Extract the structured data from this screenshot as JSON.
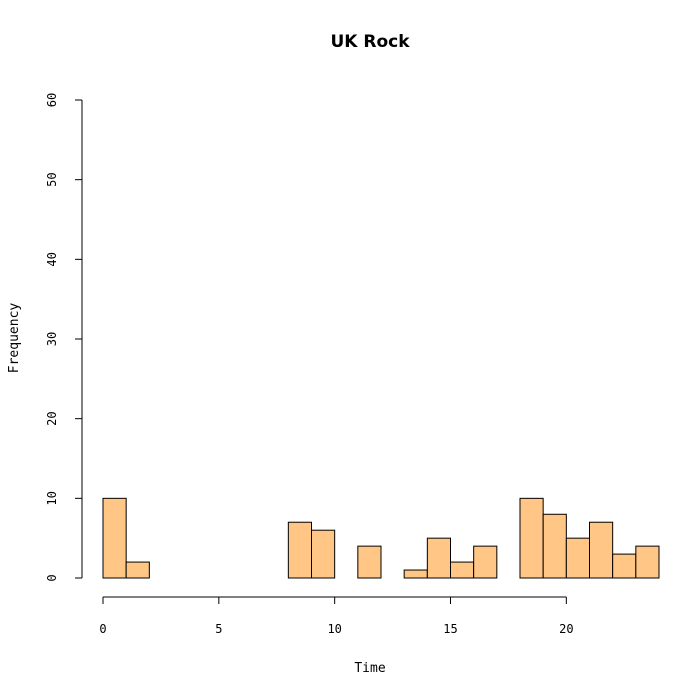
{
  "chart_data": {
    "type": "bar",
    "title": "UK Rock",
    "xlabel": "Time",
    "ylabel": "Frequency",
    "xlim": [
      0,
      24
    ],
    "ylim": [
      0,
      60
    ],
    "x_ticks": [
      0,
      5,
      10,
      15,
      20
    ],
    "y_ticks": [
      0,
      10,
      20,
      30,
      40,
      50,
      60
    ],
    "bin_width": 1,
    "bins": [
      {
        "start": 0,
        "count": 10
      },
      {
        "start": 1,
        "count": 2
      },
      {
        "start": 2,
        "count": 0
      },
      {
        "start": 3,
        "count": 0
      },
      {
        "start": 4,
        "count": 0
      },
      {
        "start": 5,
        "count": 0
      },
      {
        "start": 6,
        "count": 0
      },
      {
        "start": 7,
        "count": 0
      },
      {
        "start": 8,
        "count": 7
      },
      {
        "start": 9,
        "count": 6
      },
      {
        "start": 10,
        "count": 0
      },
      {
        "start": 11,
        "count": 4
      },
      {
        "start": 12,
        "count": 0
      },
      {
        "start": 13,
        "count": 1
      },
      {
        "start": 14,
        "count": 5
      },
      {
        "start": 15,
        "count": 2
      },
      {
        "start": 16,
        "count": 4
      },
      {
        "start": 17,
        "count": 0
      },
      {
        "start": 18,
        "count": 10
      },
      {
        "start": 19,
        "count": 8
      },
      {
        "start": 20,
        "count": 5
      },
      {
        "start": 21,
        "count": 7
      },
      {
        "start": 22,
        "count": 3
      },
      {
        "start": 23,
        "count": 4
      }
    ],
    "bar_color": "#FFC685",
    "grid": false,
    "legend": "none"
  }
}
